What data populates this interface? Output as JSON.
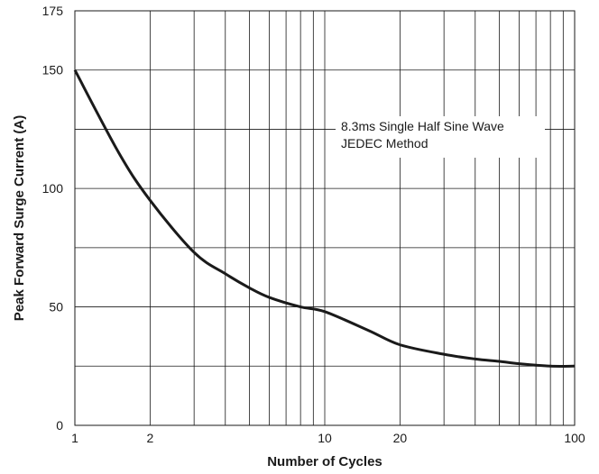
{
  "chart_data": {
    "type": "line",
    "title": "",
    "xlabel": "Number of Cycles",
    "ylabel": "Peak Forward Surge Current (A)",
    "x_scale": "log",
    "xlim": [
      1,
      100
    ],
    "ylim": [
      0,
      175
    ],
    "x_tick_labels": [
      "1",
      "2",
      "10",
      "20",
      "100"
    ],
    "x_tick_values": [
      1,
      2,
      10,
      20,
      100
    ],
    "x_grid_values": [
      1,
      2,
      3,
      4,
      5,
      6,
      7,
      8,
      9,
      10,
      20,
      30,
      40,
      50,
      60,
      70,
      80,
      90,
      100
    ],
    "y_tick_labels": [
      "0",
      "50",
      "100",
      "150",
      "175"
    ],
    "y_tick_values": [
      0,
      50,
      100,
      150,
      175
    ],
    "y_grid_values": [
      0,
      25,
      50,
      75,
      100,
      125,
      150,
      175
    ],
    "grid": true,
    "annotation": [
      "8.3ms Single Half Sine Wave",
      "JEDEC Method"
    ],
    "series": [
      {
        "x": [
          1,
          1.5,
          2,
          3,
          4,
          5,
          6,
          8,
          10,
          15,
          20,
          30,
          40,
          50,
          60,
          80,
          100
        ],
        "values": [
          150,
          115,
          95,
          73,
          64,
          58,
          54,
          50,
          48,
          40,
          34,
          30,
          28,
          27,
          26,
          25,
          25
        ],
        "color": "#1a1a1a"
      }
    ]
  }
}
